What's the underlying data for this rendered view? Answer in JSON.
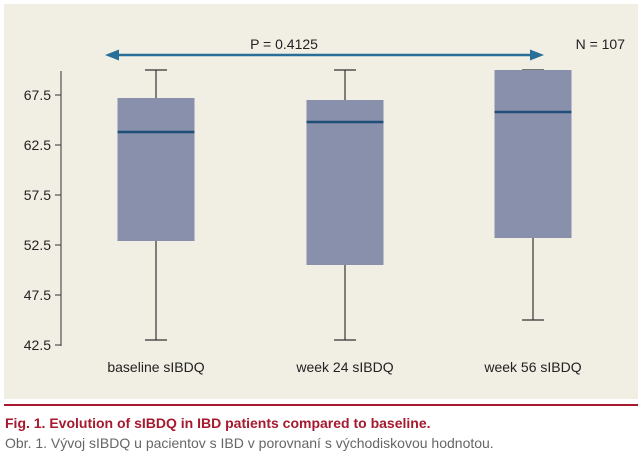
{
  "colors": {
    "panel_bg": "#f1eee4",
    "box_fill": "#8890ab",
    "median_line": "#1f4e79",
    "whisker": "#333333",
    "arrow": "#2a6f97",
    "caption_title": "#a6192e",
    "caption_rule": "#a6192e",
    "caption_sub": "#666666"
  },
  "caption": {
    "title": "Fig. 1. Evolution of sIBDQ in IBD patients compared to baseline.",
    "subtitle": "Obr. 1. Vývoj sIBDQ u pacientov s IBD v porovnaní s východiskovou hodnotou."
  },
  "chart_data": {
    "type": "box",
    "categories": [
      "baseline sIBDQ",
      "week 24 sIBDQ",
      "week 56 sIBDQ"
    ],
    "boxes": [
      {
        "min": 43.0,
        "q1": 52.9,
        "median": 63.8,
        "q3": 67.2,
        "max": 70.0
      },
      {
        "min": 43.0,
        "q1": 50.5,
        "median": 64.8,
        "q3": 67.0,
        "max": 70.0
      },
      {
        "min": 45.0,
        "q1": 53.2,
        "median": 65.8,
        "q3": 70.0,
        "max": 70.0
      }
    ],
    "y_ticks": [
      "42.5",
      "47.5",
      "52.5",
      "57.5",
      "62.5",
      "67.5"
    ],
    "ylim": [
      42.5,
      70.5
    ],
    "p_value_label": "P = 0.4125",
    "n_label": "N = 107",
    "grid": false
  }
}
